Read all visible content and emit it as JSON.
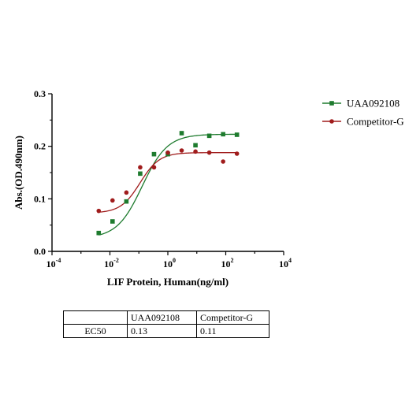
{
  "chart_data": {
    "type": "scatter",
    "xscale": "log10",
    "xlim": [
      0.0001,
      10000
    ],
    "ylim": [
      0,
      0.3
    ],
    "xticks": [
      {
        "value": 0.0001,
        "base": "10",
        "exp": "-4"
      },
      {
        "value": 0.01,
        "base": "10",
        "exp": "-2"
      },
      {
        "value": 1,
        "base": "10",
        "exp": "0"
      },
      {
        "value": 100,
        "base": "10",
        "exp": "2"
      },
      {
        "value": 10000,
        "base": "10",
        "exp": "4"
      }
    ],
    "yticks": [
      {
        "value": 0,
        "label": "0.0"
      },
      {
        "value": 0.1,
        "label": "0.1"
      },
      {
        "value": 0.2,
        "label": "0.2"
      },
      {
        "value": 0.3,
        "label": "0.3"
      }
    ],
    "xlabel": "LIF Protein, Human(ng/ml)",
    "ylabel": "Abs.(OD.490nm)",
    "legend_position": "top-right",
    "series": [
      {
        "name": "UAA092108",
        "color": "#1e7b2e",
        "marker": "square",
        "x": [
          0.0041,
          0.0123,
          0.037,
          0.111,
          0.333,
          1,
          3,
          9,
          27,
          81,
          243
        ],
        "y": [
          0.035,
          0.057,
          0.095,
          0.148,
          0.185,
          0.185,
          0.225,
          0.202,
          0.22,
          0.223,
          0.222
        ],
        "fit": {
          "bottom": 0.025,
          "top": 0.223,
          "ec50": 0.13,
          "hill": 1.0
        }
      },
      {
        "name": "Competitor-G",
        "color": "#a01c1c",
        "marker": "circle",
        "x": [
          0.0041,
          0.0123,
          0.037,
          0.111,
          0.333,
          1,
          3,
          9,
          27,
          81,
          243
        ],
        "y": [
          0.077,
          0.097,
          0.112,
          0.16,
          0.16,
          0.188,
          0.192,
          0.19,
          0.188,
          0.171,
          0.186
        ],
        "fit": {
          "bottom": 0.073,
          "top": 0.188,
          "ec50": 0.11,
          "hill": 1.3
        }
      }
    ]
  },
  "table": {
    "header": [
      "",
      "UAA092108",
      "Competitor-G"
    ],
    "rows": [
      [
        "EC50",
        "0.13",
        "0.11"
      ]
    ]
  }
}
